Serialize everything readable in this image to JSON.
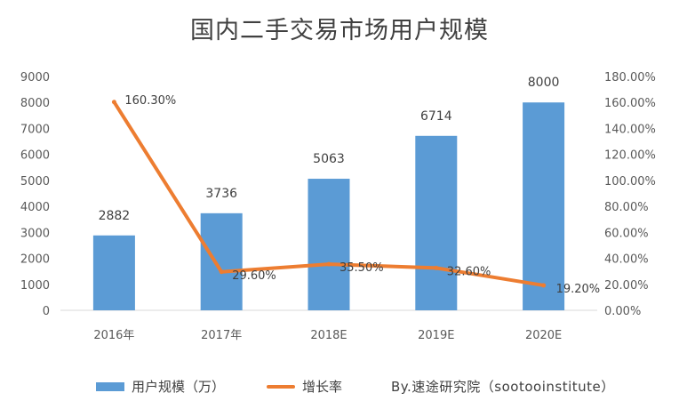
{
  "chart_data": {
    "type": "bar",
    "title": "国内二手交易市场用户规模",
    "categories": [
      "2016年",
      "2017年",
      "2018E",
      "2019E",
      "2020E"
    ],
    "series": [
      {
        "name": "用户规模（万）",
        "type": "bar",
        "axis": "left",
        "values": [
          2882,
          3736,
          5063,
          6714,
          8000
        ],
        "labels": [
          "2882",
          "3736",
          "5063",
          "6714",
          "8000"
        ],
        "color": "#5b9bd5"
      },
      {
        "name": "增长率",
        "type": "line",
        "axis": "right",
        "values": [
          160.3,
          29.6,
          35.5,
          32.6,
          19.2
        ],
        "labels": [
          "160.30%",
          "29.60%",
          "35.50%",
          "32.60%",
          "19.20%"
        ],
        "color": "#ed7d31"
      }
    ],
    "y_left": {
      "range": [
        0,
        9000
      ],
      "ticks": [
        "0",
        "1000",
        "2000",
        "3000",
        "4000",
        "5000",
        "6000",
        "7000",
        "8000",
        "9000"
      ]
    },
    "y_right": {
      "range": [
        0,
        180
      ],
      "ticks": [
        "0.00%",
        "20.00%",
        "40.00%",
        "60.00%",
        "80.00%",
        "100.00%",
        "120.00%",
        "140.00%",
        "160.00%",
        "180.00%"
      ]
    },
    "grid": false,
    "legend_position": "bottom",
    "credit": "By.速途研究院（sootooinstitute）"
  }
}
